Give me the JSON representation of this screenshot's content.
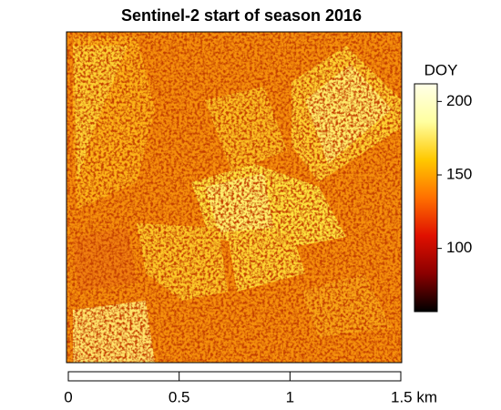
{
  "title": "Sentinel-2 start of season 2016",
  "colorbar": {
    "label": "DOY",
    "lim": [
      57,
      212
    ],
    "ticks": [
      100,
      150,
      200
    ],
    "colormap": [
      "#000000",
      "#8b0000",
      "#e01000",
      "#ff7000",
      "#ffc800",
      "#ffffa0",
      "#ffffe8"
    ]
  },
  "scalebar": {
    "lim": [
      0,
      1.5
    ],
    "ticks": [
      0,
      0.5,
      1,
      {
        "value": 1.5,
        "label": "1.5 km"
      }
    ]
  }
}
